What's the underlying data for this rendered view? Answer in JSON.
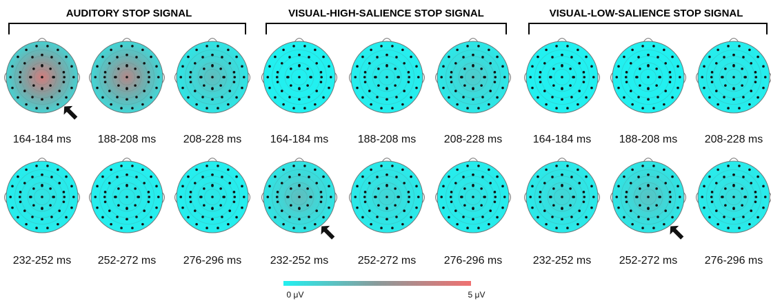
{
  "figure": {
    "conditions": [
      {
        "title": "AUDITORY STOP SIGNAL",
        "maps": [
          {
            "time": "164-184 ms",
            "intensity": 0.85
          },
          {
            "time": "188-208 ms",
            "intensity": 0.7
          },
          {
            "time": "208-228 ms",
            "intensity": 0.3
          },
          {
            "time": "232-252 ms",
            "intensity": 0.08
          },
          {
            "time": "252-272 ms",
            "intensity": 0.05
          },
          {
            "time": "276-296 ms",
            "intensity": 0.05
          }
        ],
        "arrows": [
          0
        ]
      },
      {
        "title": "VISUAL-HIGH-SALIENCE STOP SIGNAL",
        "maps": [
          {
            "time": "164-184 ms",
            "intensity": 0.0
          },
          {
            "time": "188-208 ms",
            "intensity": 0.05
          },
          {
            "time": "208-228 ms",
            "intensity": 0.22
          },
          {
            "time": "232-252 ms",
            "intensity": 0.3
          },
          {
            "time": "252-272 ms",
            "intensity": 0.16
          },
          {
            "time": "276-296 ms",
            "intensity": 0.08
          }
        ],
        "arrows": [
          3
        ]
      },
      {
        "title": "VISUAL-LOW-SALIENCE STOP SIGNAL",
        "maps": [
          {
            "time": "164-184 ms",
            "intensity": 0.0
          },
          {
            "time": "188-208 ms",
            "intensity": 0.0
          },
          {
            "time": "208-228 ms",
            "intensity": 0.06
          },
          {
            "time": "232-252 ms",
            "intensity": 0.16
          },
          {
            "time": "252-272 ms",
            "intensity": 0.26
          },
          {
            "time": "276-296 ms",
            "intensity": 0.12
          }
        ],
        "arrows": [
          4
        ]
      }
    ],
    "colorbar": {
      "min_label": "0 μV",
      "max_label": "5 μV",
      "min_color": "#22f0f0",
      "mid_color": "#8a9a9a",
      "max_color": "#f07070"
    }
  }
}
